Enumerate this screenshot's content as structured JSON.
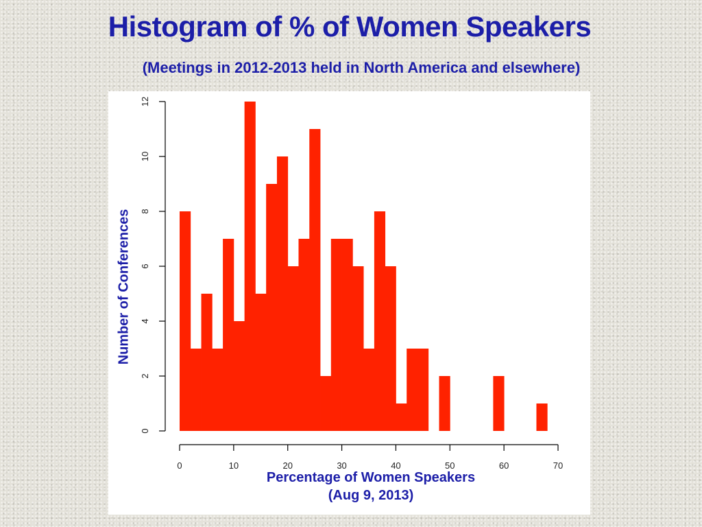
{
  "slide": {
    "title": "Histogram of % of Women Speakers",
    "subtitle": "(Meetings in 2012-2013 held in North America and elsewhere)"
  },
  "colors": {
    "title": "#1c1ea8",
    "bar_fill": "#ff2200",
    "axis": "#000000",
    "panel": "#ffffff"
  },
  "chart_data": {
    "type": "bar",
    "subtype": "histogram",
    "xlabel": "Percentage of Women Speakers",
    "xlabel_note": "(Aug 9, 2013)",
    "ylabel": "Number of Conferences",
    "xlim": [
      0,
      70
    ],
    "ylim": [
      0,
      12
    ],
    "x_ticks": [
      0,
      10,
      20,
      30,
      40,
      50,
      60,
      70
    ],
    "y_ticks": [
      0,
      2,
      4,
      6,
      8,
      10,
      12
    ],
    "grid": false,
    "legend": "none",
    "bin_width": 2,
    "bins": [
      {
        "x0": 0,
        "x1": 2,
        "count": 8
      },
      {
        "x0": 2,
        "x1": 4,
        "count": 3
      },
      {
        "x0": 4,
        "x1": 6,
        "count": 5
      },
      {
        "x0": 6,
        "x1": 8,
        "count": 3
      },
      {
        "x0": 8,
        "x1": 10,
        "count": 7
      },
      {
        "x0": 10,
        "x1": 12,
        "count": 4
      },
      {
        "x0": 12,
        "x1": 14,
        "count": 12
      },
      {
        "x0": 14,
        "x1": 16,
        "count": 5
      },
      {
        "x0": 16,
        "x1": 18,
        "count": 9
      },
      {
        "x0": 18,
        "x1": 20,
        "count": 10
      },
      {
        "x0": 20,
        "x1": 22,
        "count": 6
      },
      {
        "x0": 22,
        "x1": 24,
        "count": 7
      },
      {
        "x0": 24,
        "x1": 26,
        "count": 11
      },
      {
        "x0": 26,
        "x1": 28,
        "count": 2
      },
      {
        "x0": 28,
        "x1": 30,
        "count": 7
      },
      {
        "x0": 30,
        "x1": 32,
        "count": 7
      },
      {
        "x0": 32,
        "x1": 34,
        "count": 6
      },
      {
        "x0": 34,
        "x1": 36,
        "count": 3
      },
      {
        "x0": 36,
        "x1": 38,
        "count": 8
      },
      {
        "x0": 38,
        "x1": 40,
        "count": 6
      },
      {
        "x0": 40,
        "x1": 42,
        "count": 1
      },
      {
        "x0": 42,
        "x1": 44,
        "count": 3
      },
      {
        "x0": 44,
        "x1": 46,
        "count": 3
      },
      {
        "x0": 48,
        "x1": 50,
        "count": 2
      },
      {
        "x0": 58,
        "x1": 60,
        "count": 2
      },
      {
        "x0": 66,
        "x1": 68,
        "count": 1
      }
    ]
  }
}
